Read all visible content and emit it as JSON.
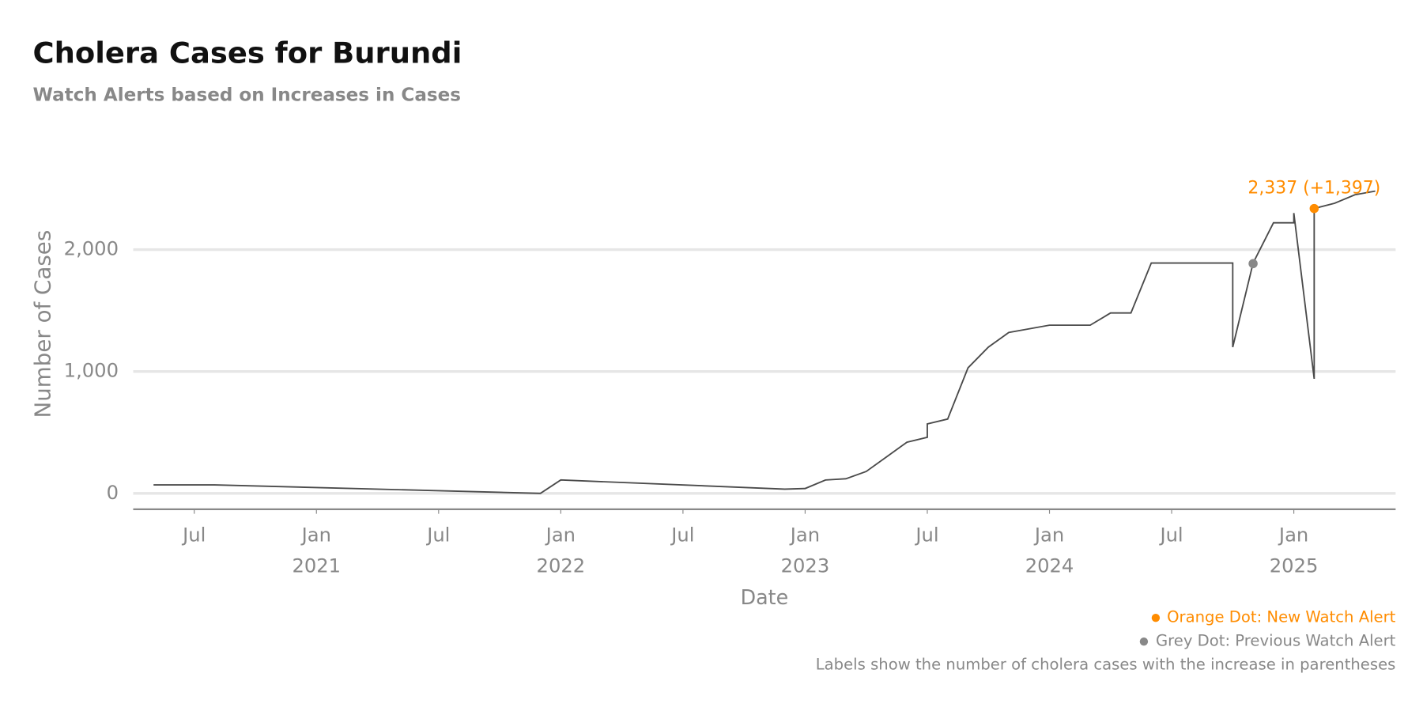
{
  "chart_data": {
    "type": "line",
    "title": "Cholera Cases for Burundi",
    "subtitle": "Watch Alerts based on Increases in Cases",
    "xlabel": "Date",
    "ylabel": "Number of Cases",
    "x": [
      "2020-05",
      "2020-08",
      "2021-12",
      "2022-01",
      "2022-12",
      "2023-01",
      "2023-02",
      "2023-03",
      "2023-04",
      "2023-05",
      "2023-06",
      "2023-07",
      "2023-07",
      "2023-08",
      "2023-09",
      "2023-10",
      "2023-11",
      "2023-12",
      "2024-01",
      "2024-03",
      "2024-04",
      "2024-05",
      "2024-06",
      "2024-10",
      "2024-10",
      "2024-11",
      "2024-12",
      "2025-01",
      "2025-01",
      "2025-02",
      "2025-02",
      "2025-03",
      "2025-04",
      "2025-05",
      "2025-05"
    ],
    "values": [
      70,
      70,
      0,
      110,
      35,
      40,
      110,
      120,
      180,
      300,
      420,
      460,
      570,
      610,
      1030,
      1200,
      1320,
      1350,
      1380,
      1380,
      1480,
      1480,
      1890,
      1890,
      1200,
      1890,
      2220,
      2220,
      2300,
      940,
      2337,
      2380,
      2450,
      2480,
      2480
    ],
    "color": "#4a4a4a",
    "xlim": [
      "2020-04",
      "2025-06"
    ],
    "xticks": [
      {
        "value": "2020-07",
        "label": "Jul"
      },
      {
        "value": "2021-01",
        "label": "Jan",
        "year": "2021"
      },
      {
        "value": "2021-07",
        "label": "Jul"
      },
      {
        "value": "2022-01",
        "label": "Jan",
        "year": "2022"
      },
      {
        "value": "2022-07",
        "label": "Jul"
      },
      {
        "value": "2023-01",
        "label": "Jan",
        "year": "2023"
      },
      {
        "value": "2023-07",
        "label": "Jul"
      },
      {
        "value": "2024-01",
        "label": "Jan",
        "year": "2024"
      },
      {
        "value": "2024-07",
        "label": "Jul"
      },
      {
        "value": "2025-01",
        "label": "Jan",
        "year": "2025"
      }
    ],
    "ylim": [
      -130,
      2700
    ],
    "yticks": [
      0,
      {
        "value": 1000,
        "label": "1,000"
      },
      {
        "value": 2000,
        "label": "2,000"
      }
    ],
    "grid": true,
    "alerts": [
      {
        "x": "2025-02",
        "value": 2337,
        "label": "2,337 (+1,397)",
        "color": "#ff8c00"
      },
      {
        "x": "2024-11",
        "value": 1885,
        "color": "#888888"
      }
    ],
    "notes": [
      "Orange Dot: New Watch Alert",
      "Grey Dot: Previous  Watch Alert",
      "Labels show the number of cholera cases with the increase in parentheses"
    ]
  }
}
